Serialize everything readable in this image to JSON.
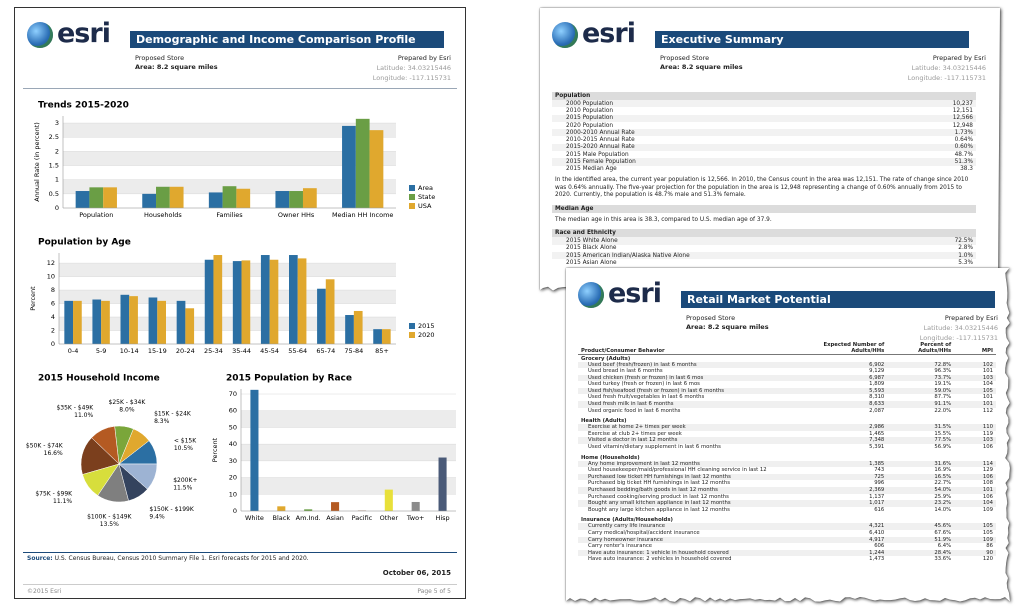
{
  "report": {
    "logo": "esri",
    "title": "Demographic and Income Comparison Profile",
    "site": "Proposed Store",
    "area": "Area: 8.2 square miles",
    "prepared_by": "Prepared by Esri",
    "latitude": "Latitude: 34.03215446",
    "longitude": "Longitude: -117.115731",
    "source_label": "Source:",
    "source": "U.S. Census Bureau, Census 2010 Summary File 1.  Esri forecasts for 2015 and 2020.",
    "date": "October 06, 2015",
    "copyright": "©2015 Esri",
    "page": "Page 5 of 5"
  },
  "chart_data": [
    {
      "type": "bar",
      "title": "Trends 2015-2020",
      "ylabel": "Annual Rate (in percent)",
      "categories": [
        "Population",
        "Households",
        "Families",
        "Owner HHs",
        "Median HH Income"
      ],
      "series": [
        {
          "name": "Area",
          "color": "#2b6fa3",
          "values": [
            0.6,
            0.5,
            0.55,
            0.6,
            2.9
          ]
        },
        {
          "name": "State",
          "color": "#6a9e45",
          "values": [
            0.73,
            0.75,
            0.77,
            0.6,
            3.15
          ]
        },
        {
          "name": "USA",
          "color": "#e0a82e",
          "values": [
            0.73,
            0.75,
            0.68,
            0.7,
            2.75
          ]
        }
      ],
      "ylim": [
        0,
        3.25
      ],
      "yticks": [
        0,
        0.5,
        1,
        1.5,
        2,
        2.5,
        3
      ],
      "grid": true,
      "legend": "right"
    },
    {
      "type": "bar",
      "title": "Population by Age",
      "ylabel": "Percent",
      "categories": [
        "0-4",
        "5-9",
        "10-14",
        "15-19",
        "20-24",
        "25-34",
        "35-44",
        "45-54",
        "55-64",
        "65-74",
        "75-84",
        "85+"
      ],
      "series": [
        {
          "name": "2015",
          "color": "#2b6fa3",
          "values": [
            6.4,
            6.6,
            7.3,
            6.9,
            6.4,
            12.5,
            12.3,
            13.2,
            13.2,
            8.2,
            4.3,
            2.2
          ]
        },
        {
          "name": "2020",
          "color": "#e0a82e",
          "values": [
            6.4,
            6.4,
            7.1,
            6.4,
            5.3,
            13.2,
            12.4,
            12.5,
            12.7,
            9.6,
            4.9,
            2.2
          ]
        }
      ],
      "ylim": [
        0,
        13.5
      ],
      "yticks": [
        0,
        2,
        4,
        6,
        8,
        10,
        12
      ],
      "grid": true,
      "legend": "right"
    },
    {
      "type": "pie",
      "title": "2015 Household Income",
      "categories": [
        "< $15K",
        "$15K - $24K",
        "$25K - $34K",
        "$35K - $49K",
        "$50K - $74K",
        "$75K - $99K",
        "$100K - $149K",
        "$150K - $199K",
        "$200K+"
      ],
      "values": [
        10.5,
        8.3,
        8.0,
        11.0,
        16.6,
        11.1,
        13.5,
        9.4,
        11.5
      ],
      "value_labels": [
        "10.5%",
        "8.3%",
        "8.0%",
        "11.0%",
        "16.6%",
        "11.1%",
        "13.5%",
        "9.4%",
        "11.5%"
      ],
      "colors": [
        "#2b6fa3",
        "#e0a82e",
        "#7aa63a",
        "#b45a22",
        "#7b3f1d",
        "#d7de3c",
        "#7f7f7f",
        "#34435e",
        "#9db3d3"
      ]
    },
    {
      "type": "bar",
      "title": "2015 Population by Race",
      "ylabel": "Percent",
      "categories": [
        "White",
        "Black",
        "Am.Ind.",
        "Asian",
        "Pacific",
        "Other",
        "Two+",
        "Hisp"
      ],
      "values": [
        72.5,
        2.8,
        1.0,
        5.3,
        0.2,
        12.8,
        5.4,
        32.0
      ],
      "colors": [
        "#2b6fa3",
        "#e0a82e",
        "#6a9e45",
        "#b45a22",
        "#7b3f1d",
        "#e8e03a",
        "#8c8c8c",
        "#4a5a78"
      ],
      "ylim": [
        0,
        73
      ],
      "yticks": [
        0,
        10,
        20,
        30,
        40,
        50,
        60,
        70
      ],
      "grid": true
    }
  ],
  "executive_summary": {
    "logo": "esri",
    "title": "Executive Summary",
    "site": "Proposed Store",
    "area": "Area: 8.2 square miles",
    "prepared_by": "Prepared by Esri",
    "latitude": "Latitude: 34.03215446",
    "longitude": "Longitude: -117.115731",
    "sections": [
      {
        "heading": "Population",
        "rows": [
          [
            "2000 Population",
            "10,237"
          ],
          [
            "2010 Population",
            "12,151"
          ],
          [
            "2015 Population",
            "12,566"
          ],
          [
            "2020 Population",
            "12,948"
          ],
          [
            "2000-2010 Annual Rate",
            "1.73%"
          ],
          [
            "2010-2015 Annual Rate",
            "0.64%"
          ],
          [
            "2015-2020 Annual Rate",
            "0.60%"
          ],
          [
            "2015 Male Population",
            "48.7%"
          ],
          [
            "2015 Female Population",
            "51.3%"
          ],
          [
            "2015 Median Age",
            "38.3"
          ]
        ],
        "text": "In the identified area, the current year population is 12,566. In 2010, the Census count in the area was 12,151.  The rate of change since 2010 was 0.64% annually. The five-year projection for the population in the area is 12,948 representing a change of 0.60% annually from 2015 to 2020. Currently, the population is 48.7% male and 51.3% female."
      },
      {
        "heading": "Median Age",
        "text": "The median age in this area is 38.3, compared to U.S. median age of 37.9."
      },
      {
        "heading": "Race and Ethnicity",
        "rows": [
          [
            "2015 White Alone",
            "72.5%"
          ],
          [
            "2015 Black Alone",
            "2.8%"
          ],
          [
            "2015 American Indian/Alaska Native Alone",
            "1.0%"
          ],
          [
            "2015 Asian Alone",
            "5.3%"
          ]
        ]
      }
    ]
  },
  "retail_market_potential": {
    "logo": "esri",
    "title": "Retail Market Potential",
    "site": "Proposed Store",
    "area": "Area: 8.2 square miles",
    "prepared_by": "Prepared by Esri",
    "latitude": "Latitude: 34.03215446",
    "longitude": "Longitude: -117.115731",
    "columns": [
      "Product/Consumer Behavior",
      "Expected Number of Adults/HHs",
      "Percent of Adults/HHs",
      "MPI"
    ],
    "sections": [
      {
        "heading": "Grocery (Adults)",
        "rows": [
          [
            "Used beef (fresh/frozen) in last 6 months",
            "6,902",
            "72.8%",
            "102"
          ],
          [
            "Used bread in last 6 months",
            "9,129",
            "96.3%",
            "101"
          ],
          [
            "Used chicken (fresh or frozen) in last 6 mos",
            "6,987",
            "73.7%",
            "103"
          ],
          [
            "Used turkey (fresh or frozen) in last 6 mos",
            "1,809",
            "19.1%",
            "104"
          ],
          [
            "Used fish/seafood (fresh or frozen) in last 6 months",
            "5,593",
            "59.0%",
            "105"
          ],
          [
            "Used fresh fruit/vegetables in last 6 months",
            "8,310",
            "87.7%",
            "101"
          ],
          [
            "Used fresh milk in last 6 months",
            "8,633",
            "91.1%",
            "101"
          ],
          [
            "Used organic food in last 6 months",
            "2,087",
            "22.0%",
            "112"
          ]
        ]
      },
      {
        "heading": "Health (Adults)",
        "rows": [
          [
            "Exercise at home 2+ times per week",
            "2,986",
            "31.5%",
            "110"
          ],
          [
            "Exercise at club 2+ times per week",
            "1,465",
            "15.5%",
            "119"
          ],
          [
            "Visited a doctor in last 12 months",
            "7,348",
            "77.5%",
            "103"
          ],
          [
            "Used vitamin/dietary supplement in last 6 months",
            "5,391",
            "56.9%",
            "106"
          ]
        ]
      },
      {
        "heading": "Home (Households)",
        "rows": [
          [
            "Any home improvement in last 12 months",
            "1,385",
            "31.6%",
            "114"
          ],
          [
            "Used housekeeper/maid/professional HH cleaning service in last 12",
            "743",
            "16.9%",
            "129"
          ],
          [
            "Purchased low ticket HH furnishings in last 12 months",
            "725",
            "16.5%",
            "106"
          ],
          [
            "Purchased big ticket HH furnishings in last 12 months",
            "996",
            "22.7%",
            "108"
          ],
          [
            "Purchased bedding/bath goods in last 12 months",
            "2,369",
            "54.0%",
            "101"
          ],
          [
            "Purchased cooking/serving product in last 12 months",
            "1,137",
            "25.9%",
            "106"
          ],
          [
            "Bought any small kitchen appliance in last 12 months",
            "1,017",
            "23.2%",
            "104"
          ],
          [
            "Bought any large kitchen appliance in last 12 months",
            "616",
            "14.0%",
            "109"
          ]
        ]
      },
      {
        "heading": "Insurance (Adults/Households)",
        "rows": [
          [
            "Currently carry life insurance",
            "4,321",
            "45.6%",
            "105"
          ],
          [
            "Carry medical/hospital/accident insurance",
            "6,410",
            "67.6%",
            "105"
          ],
          [
            "Carry homeowner insurance",
            "4,917",
            "51.9%",
            "109"
          ],
          [
            "Carry renter's insurance",
            "606",
            "6.4%",
            "86"
          ],
          [
            "Have auto insurance: 1 vehicle in household covered",
            "1,244",
            "28.4%",
            "90"
          ],
          [
            "Have auto insurance: 2 vehicles in household covered",
            "1,473",
            "33.6%",
            "120"
          ]
        ]
      }
    ]
  }
}
